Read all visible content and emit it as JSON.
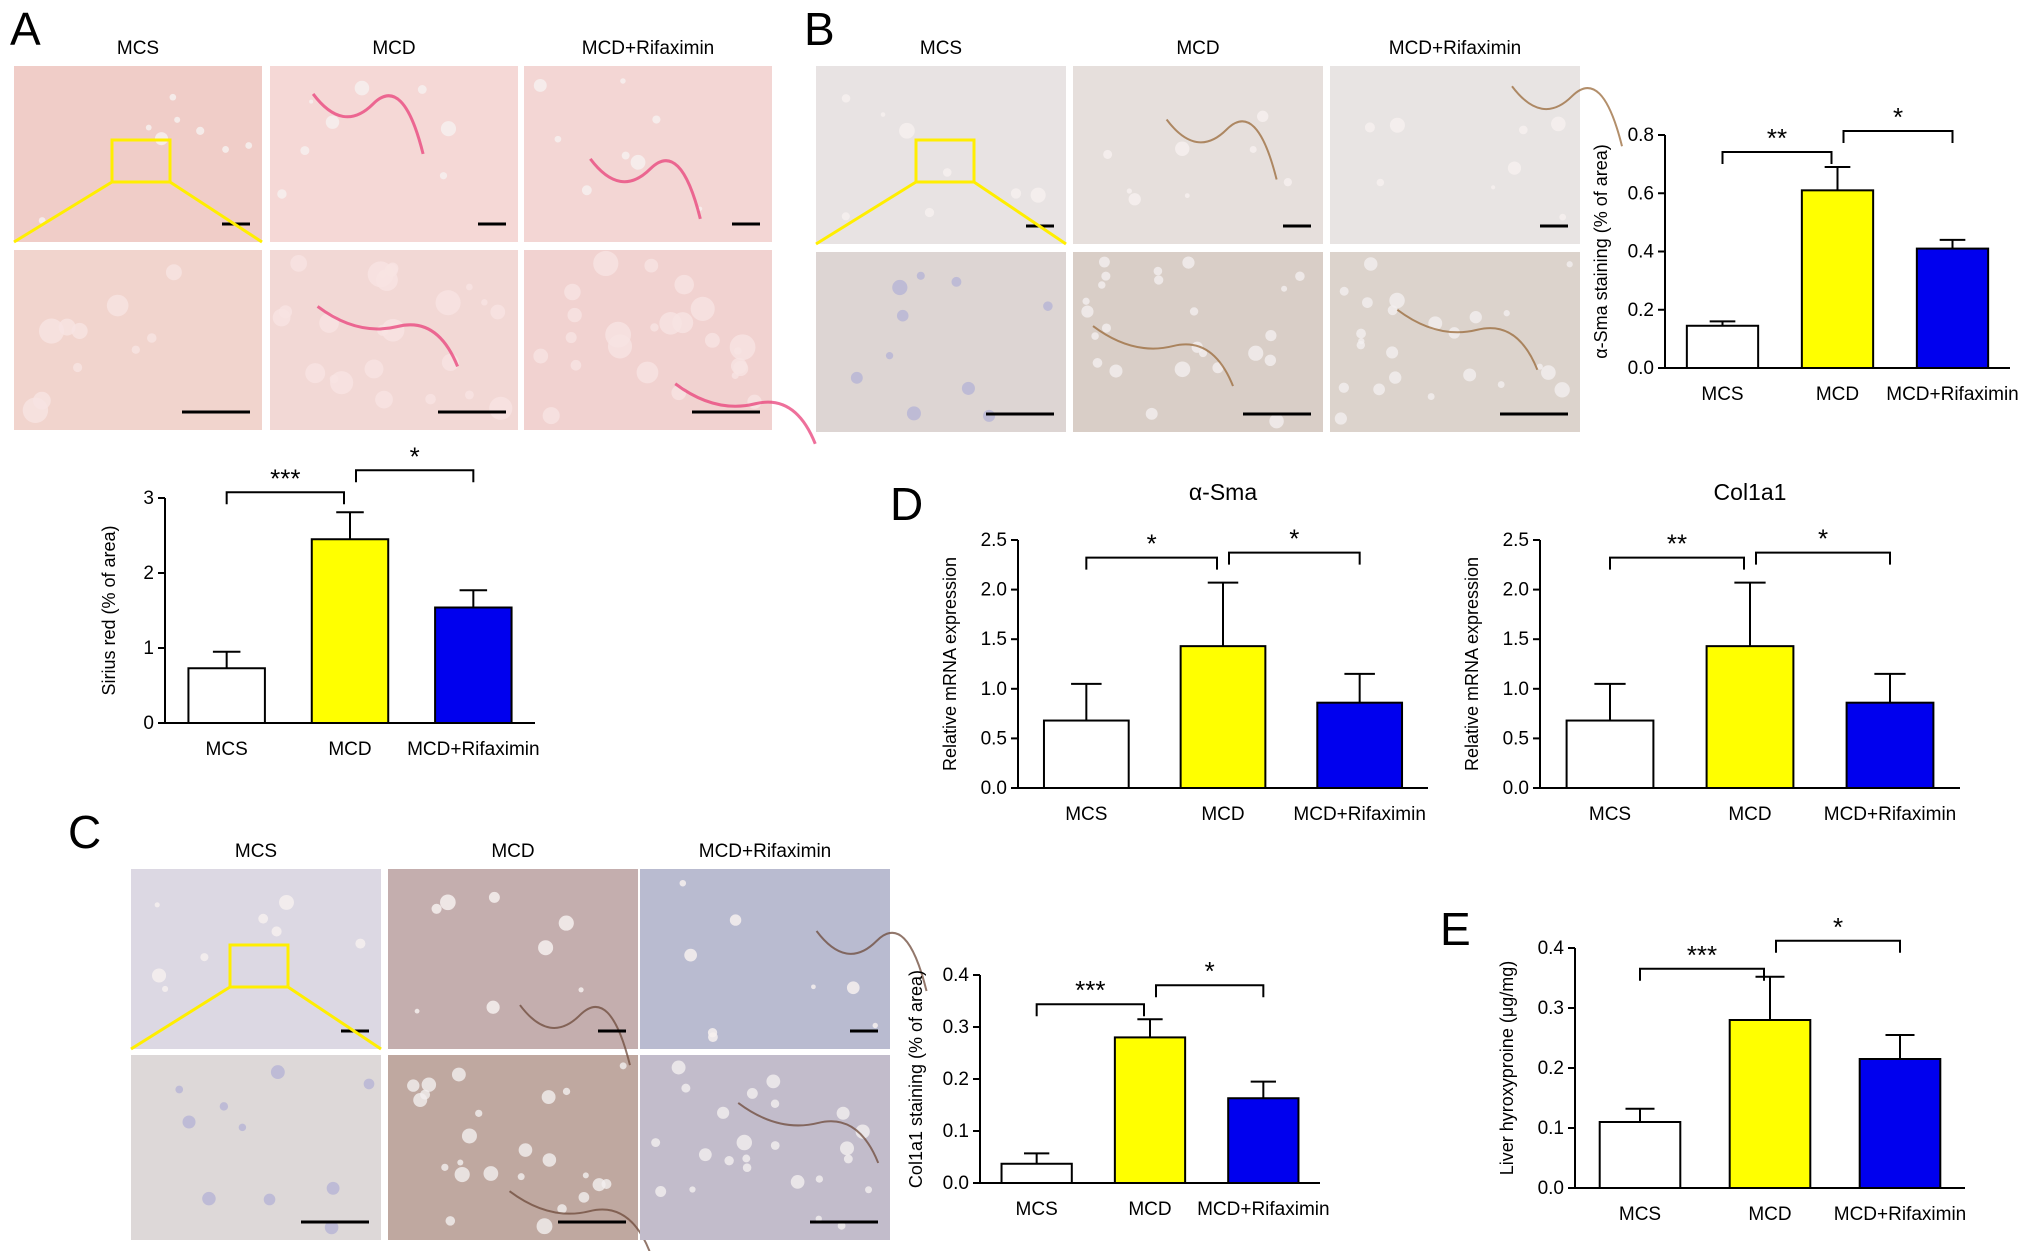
{
  "panels": {
    "A": {
      "letter": "A",
      "columns": [
        "MCS",
        "MCD",
        "MCD+Rifaximin"
      ],
      "colors": {
        "top": [
          "#f0cdc8",
          "#f5d8d6",
          "#f3d6d4"
        ],
        "bottom": [
          "#f1d4cd",
          "#f2d8d5",
          "#f1d2d0"
        ],
        "stain": "#e8407a"
      }
    },
    "B": {
      "letter": "B",
      "columns": [
        "MCS",
        "MCD",
        "MCD+Rifaximin"
      ],
      "colors": {
        "top": [
          "#e8e3e3",
          "#e6dfdc",
          "#e8e4e3"
        ],
        "bottom": [
          "#ddd5d3",
          "#d9cec7",
          "#dcd3cc"
        ],
        "stain": "#9a6a3a"
      }
    },
    "C": {
      "letter": "C",
      "columns": [
        "MCS",
        "MCD",
        "MCD+Rifaximin"
      ],
      "colors": {
        "top": [
          "#dcd8e3",
          "#c4aeae",
          "#b9bbd0"
        ],
        "bottom": [
          "#ddd8d8",
          "#bfa8a0",
          "#c2bccb"
        ],
        "stain": "#6e4a3a"
      }
    },
    "D": {
      "letter": "D"
    },
    "E": {
      "letter": "E"
    }
  },
  "colors": {
    "MCS": "#ffffff",
    "MCD": "#ffff00",
    "MCD+Rifaximin": "#0000ee",
    "inset_box": "#ffee00",
    "axis": "#000000"
  },
  "chart_data": [
    {
      "id": "A_sirius",
      "type": "bar",
      "categories": [
        "MCS",
        "MCD",
        "MCD+Rifaximin"
      ],
      "values": [
        0.73,
        2.45,
        1.54
      ],
      "errors": [
        0.22,
        0.36,
        0.23
      ],
      "ylabel": "Sirius red (% of area)",
      "ylim": [
        0,
        3
      ],
      "yticks": [
        "0",
        "1",
        "2",
        "3"
      ],
      "significance": [
        {
          "from": 0,
          "to": 1,
          "label": "***"
        },
        {
          "from": 1,
          "to": 2,
          "label": "*"
        }
      ]
    },
    {
      "id": "B_asma_staining",
      "type": "bar",
      "categories": [
        "MCS",
        "MCD",
        "MCD+Rifaximin"
      ],
      "values": [
        0.145,
        0.61,
        0.41
      ],
      "errors": [
        0.015,
        0.08,
        0.03
      ],
      "ylabel": "α-Sma staining (% of area)",
      "ylim": [
        0,
        0.8
      ],
      "yticks": [
        "0.0",
        "0.2",
        "0.4",
        "0.6",
        "0.8"
      ],
      "significance": [
        {
          "from": 0,
          "to": 1,
          "label": "**"
        },
        {
          "from": 1,
          "to": 2,
          "label": "*"
        }
      ]
    },
    {
      "id": "C_col1a1_staining",
      "type": "bar",
      "categories": [
        "MCS",
        "MCD",
        "MCD+Rifaximin"
      ],
      "values": [
        0.037,
        0.28,
        0.163
      ],
      "errors": [
        0.02,
        0.035,
        0.032
      ],
      "ylabel": "Col1a1 staining (% of area)",
      "ylim": [
        0,
        0.4
      ],
      "yticks": [
        "0.0",
        "0.1",
        "0.2",
        "0.3",
        "0.4"
      ],
      "significance": [
        {
          "from": 0,
          "to": 1,
          "label": "***"
        },
        {
          "from": 1,
          "to": 2,
          "label": "*"
        }
      ]
    },
    {
      "id": "D_asma_mrna",
      "type": "bar",
      "title": "α-Sma",
      "categories": [
        "MCS",
        "MCD",
        "MCD+Rifaximin"
      ],
      "values": [
        0.68,
        1.43,
        0.86
      ],
      "errors": [
        0.37,
        0.64,
        0.29
      ],
      "ylabel": "Relative mRNA expression",
      "ylim": [
        0,
        2.5
      ],
      "yticks": [
        "0.0",
        "0.5",
        "1.0",
        "1.5",
        "2.0",
        "2.5"
      ],
      "significance": [
        {
          "from": 0,
          "to": 1,
          "label": "*"
        },
        {
          "from": 1,
          "to": 2,
          "label": "*"
        }
      ]
    },
    {
      "id": "D_col1a1_mrna",
      "type": "bar",
      "title": "Col1a1",
      "categories": [
        "MCS",
        "MCD",
        "MCD+Rifaximin"
      ],
      "values": [
        0.68,
        1.43,
        0.86
      ],
      "errors": [
        0.37,
        0.64,
        0.29
      ],
      "ylabel": "Relative mRNA expression",
      "ylim": [
        0,
        2.5
      ],
      "yticks": [
        "0.0",
        "0.5",
        "1.0",
        "1.5",
        "2.0",
        "2.5"
      ],
      "significance": [
        {
          "from": 0,
          "to": 1,
          "label": "**"
        },
        {
          "from": 1,
          "to": 2,
          "label": "*"
        }
      ]
    },
    {
      "id": "E_hydroxyproline",
      "type": "bar",
      "categories": [
        "MCS",
        "MCD",
        "MCD+Rifaximin"
      ],
      "values": [
        0.11,
        0.28,
        0.215
      ],
      "errors": [
        0.022,
        0.072,
        0.04
      ],
      "ylabel": "Liver hyroxyproine (μg/mg)",
      "ylim": [
        0,
        0.4
      ],
      "yticks": [
        "0.0",
        "0.1",
        "0.2",
        "0.3",
        "0.4"
      ],
      "significance": [
        {
          "from": 0,
          "to": 1,
          "label": "***"
        },
        {
          "from": 1,
          "to": 2,
          "label": "*"
        }
      ]
    }
  ]
}
